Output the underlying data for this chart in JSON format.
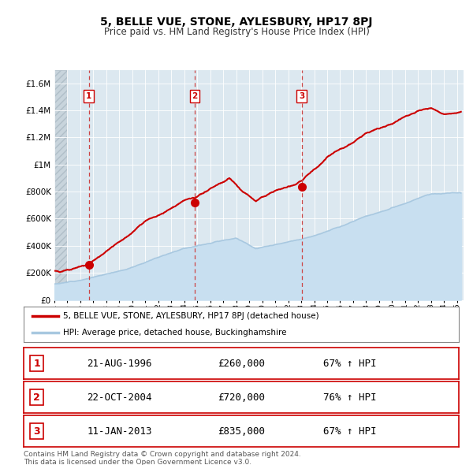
{
  "title": "5, BELLE VUE, STONE, AYLESBURY, HP17 8PJ",
  "subtitle": "Price paid vs. HM Land Registry's House Price Index (HPI)",
  "bg_color": "#dce8f0",
  "hpi_color": "#a8c8e0",
  "hpi_fill_color": "#c8dff0",
  "price_color": "#cc0000",
  "sale_marker_color": "#cc0000",
  "dashed_line_color": "#cc4444",
  "grid_color": "white",
  "hatch_color": "#c0cdd6",
  "sales": [
    {
      "label": "1",
      "date_num": 1996.643,
      "price": 260000,
      "date_str": "21-AUG-1996",
      "pct": "67%",
      "dir": "↑"
    },
    {
      "label": "2",
      "date_num": 2004.808,
      "price": 720000,
      "date_str": "22-OCT-2004",
      "pct": "76%",
      "dir": "↑"
    },
    {
      "label": "3",
      "date_num": 2013.036,
      "price": 835000,
      "date_str": "11-JAN-2013",
      "pct": "67%",
      "dir": "↑"
    }
  ],
  "legend_property_label": "5, BELLE VUE, STONE, AYLESBURY, HP17 8PJ (detached house)",
  "legend_hpi_label": "HPI: Average price, detached house, Buckinghamshire",
  "footer_line1": "Contains HM Land Registry data © Crown copyright and database right 2024.",
  "footer_line2": "This data is licensed under the Open Government Licence v3.0.",
  "xmin": 1994.0,
  "xmax": 2025.5,
  "ymin": 0,
  "ymax": 1700000,
  "yticks": [
    0,
    200000,
    400000,
    600000,
    800000,
    1000000,
    1200000,
    1400000,
    1600000
  ],
  "ytick_labels": [
    "£0",
    "£200K",
    "£400K",
    "£600K",
    "£800K",
    "£1M",
    "£1.2M",
    "£1.4M",
    "£1.6M"
  ],
  "hatch_end_year": 1995.0
}
